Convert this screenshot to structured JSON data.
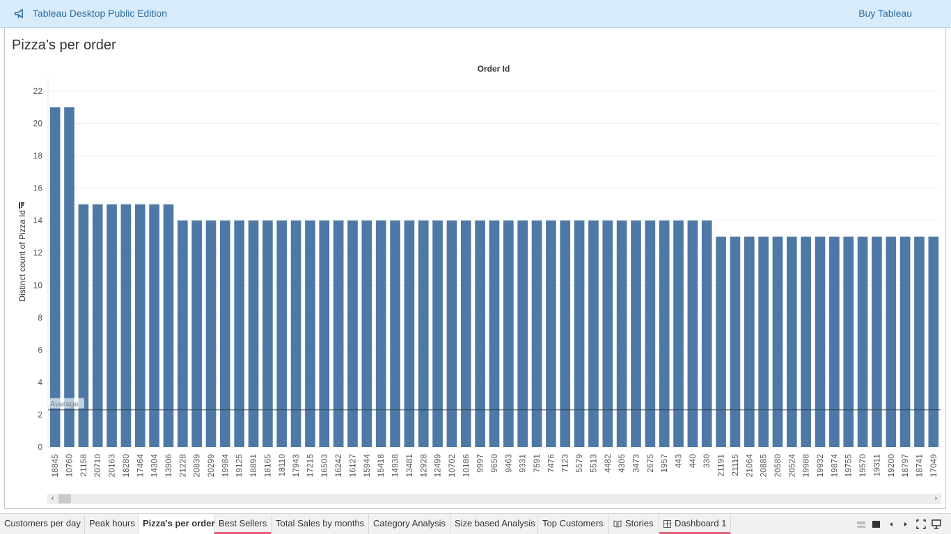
{
  "topbar": {
    "title": "Tableau Desktop Public Edition",
    "buy_label": "Buy Tableau"
  },
  "sheet": {
    "title": "Pizza’s per order"
  },
  "colors": {
    "bar": "#4e79a7",
    "topbar_bg": "#d7ebfb",
    "link": "#2d6c9c",
    "tab_marker": "#e8607a"
  },
  "chart_data": {
    "type": "bar",
    "xlabel": "Order Id",
    "ylabel": "Distinct count of Pizza Id",
    "ylim": [
      0,
      22
    ],
    "yticks": [
      0,
      2,
      4,
      6,
      8,
      10,
      12,
      14,
      16,
      18,
      20,
      22
    ],
    "grid": true,
    "categories": [
      "18845",
      "10760",
      "21158",
      "20710",
      "20163",
      "18280",
      "17464",
      "14304",
      "13906",
      "21228",
      "20839",
      "20299",
      "19984",
      "19125",
      "18891",
      "18165",
      "18110",
      "17943",
      "17215",
      "16503",
      "16242",
      "16127",
      "15944",
      "15418",
      "14938",
      "13481",
      "12928",
      "12499",
      "10702",
      "10186",
      "9997",
      "9650",
      "9463",
      "9331",
      "7591",
      "7476",
      "7123",
      "5579",
      "5513",
      "4482",
      "4305",
      "3473",
      "2675",
      "1957",
      "443",
      "440",
      "330",
      "21191",
      "21115",
      "21064",
      "20885",
      "20580",
      "20524",
      "19988",
      "19932",
      "19874",
      "19755",
      "19570",
      "19311",
      "19200",
      "18797",
      "18741",
      "17049"
    ],
    "values": [
      21,
      21,
      15,
      15,
      15,
      15,
      15,
      15,
      15,
      14,
      14,
      14,
      14,
      14,
      14,
      14,
      14,
      14,
      14,
      14,
      14,
      14,
      14,
      14,
      14,
      14,
      14,
      14,
      14,
      14,
      14,
      14,
      14,
      14,
      14,
      14,
      14,
      14,
      14,
      14,
      14,
      14,
      14,
      14,
      14,
      14,
      14,
      13,
      13,
      13,
      13,
      13,
      13,
      13,
      13,
      13,
      13,
      13,
      13,
      13,
      13,
      13,
      13
    ],
    "reference_line": {
      "label": "Average",
      "value": 2.3
    }
  },
  "scroll": {
    "left": "‹",
    "right": "›"
  },
  "tabs": [
    {
      "label": "Customers per day"
    },
    {
      "label": "Peak hours"
    },
    {
      "label": "Pizza's per order"
    },
    {
      "label": "Best Sellers"
    },
    {
      "label": "Total Sales by months"
    },
    {
      "label": "Category Analysis"
    },
    {
      "label": "Size based Analysis"
    },
    {
      "label": "Top Customers"
    },
    {
      "label": "Stories",
      "icon": "book-icon"
    },
    {
      "label": "Dashboard 1",
      "icon": "grid-icon"
    }
  ]
}
